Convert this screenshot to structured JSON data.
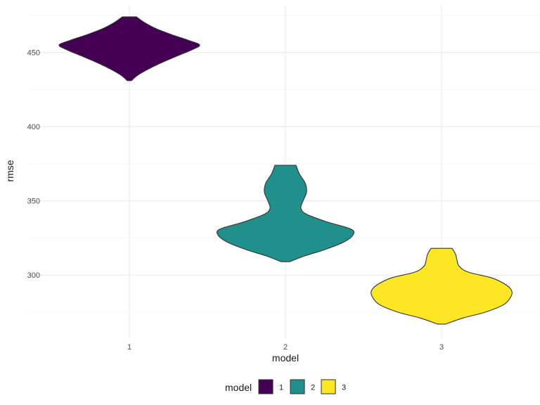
{
  "chart_data": {
    "type": "violin",
    "xlabel": "model",
    "ylabel": "rmse",
    "categories": [
      "1",
      "2",
      "3"
    ],
    "ylim": [
      257,
      482
    ],
    "yticks": [
      300,
      350,
      400,
      450
    ],
    "grid": true,
    "legend": {
      "title": "model",
      "position": "bottom",
      "entries": [
        "1",
        "2",
        "3"
      ]
    },
    "series": [
      {
        "category": "1",
        "color": "#440154",
        "range": [
          431,
          474
        ],
        "density": [
          {
            "y": 431,
            "w": 0.03
          },
          {
            "y": 435,
            "w": 0.13
          },
          {
            "y": 440,
            "w": 0.32
          },
          {
            "y": 444,
            "w": 0.5
          },
          {
            "y": 448,
            "w": 0.7
          },
          {
            "y": 452,
            "w": 0.9
          },
          {
            "y": 455,
            "w": 1.0
          },
          {
            "y": 458,
            "w": 0.85
          },
          {
            "y": 462,
            "w": 0.6
          },
          {
            "y": 466,
            "w": 0.38
          },
          {
            "y": 470,
            "w": 0.22
          },
          {
            "y": 474,
            "w": 0.1
          }
        ]
      },
      {
        "category": "2",
        "color": "#21908C",
        "range": [
          309,
          374
        ],
        "density": [
          {
            "y": 309,
            "w": 0.06
          },
          {
            "y": 313,
            "w": 0.28
          },
          {
            "y": 317,
            "w": 0.55
          },
          {
            "y": 322,
            "w": 0.82
          },
          {
            "y": 327,
            "w": 0.96
          },
          {
            "y": 331,
            "w": 0.93
          },
          {
            "y": 336,
            "w": 0.58
          },
          {
            "y": 341,
            "w": 0.3
          },
          {
            "y": 345,
            "w": 0.22
          },
          {
            "y": 350,
            "w": 0.25
          },
          {
            "y": 356,
            "w": 0.3
          },
          {
            "y": 362,
            "w": 0.28
          },
          {
            "y": 368,
            "w": 0.2
          },
          {
            "y": 374,
            "w": 0.15
          }
        ]
      },
      {
        "category": "3",
        "color": "#FDE725",
        "range": [
          267,
          318
        ],
        "density": [
          {
            "y": 267,
            "w": 0.06
          },
          {
            "y": 271,
            "w": 0.3
          },
          {
            "y": 275,
            "w": 0.62
          },
          {
            "y": 280,
            "w": 0.88
          },
          {
            "y": 285,
            "w": 0.98
          },
          {
            "y": 289,
            "w": 1.0
          },
          {
            "y": 293,
            "w": 0.93
          },
          {
            "y": 298,
            "w": 0.72
          },
          {
            "y": 302,
            "w": 0.38
          },
          {
            "y": 306,
            "w": 0.25
          },
          {
            "y": 310,
            "w": 0.22
          },
          {
            "y": 314,
            "w": 0.2
          },
          {
            "y": 318,
            "w": 0.15
          }
        ]
      }
    ]
  }
}
